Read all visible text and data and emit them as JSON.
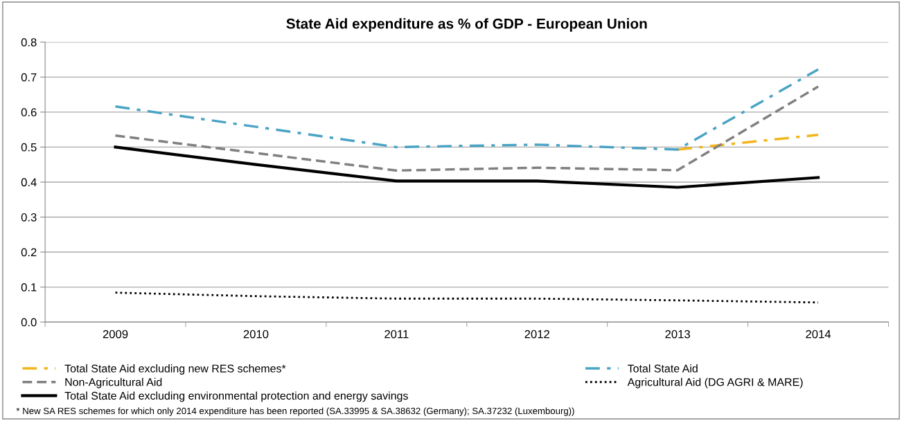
{
  "chart_data": {
    "type": "line",
    "title": "State Aid expenditure as % of GDP - European Union",
    "categories": [
      "2009",
      "2010",
      "2011",
      "2012",
      "2013",
      "2014"
    ],
    "series": [
      {
        "name": "Total State Aid excluding new RES schemes*",
        "color": "#f2b51c",
        "line_style": "dashdot",
        "values": [
          null,
          null,
          null,
          null,
          0.493,
          0.535
        ]
      },
      {
        "name": "Non-Agricultural Aid",
        "color": "#808080",
        "line_style": "dashed",
        "values": [
          0.533,
          0.483,
          0.433,
          0.441,
          0.434,
          0.673
        ]
      },
      {
        "name": "Total State Aid excluding environmental protection and energy savings",
        "color": "#000000",
        "line_style": "solid",
        "values": [
          0.5,
          0.45,
          0.403,
          0.403,
          0.385,
          0.413
        ]
      },
      {
        "name": "Total State Aid",
        "color": "#4aa3c4",
        "line_style": "dashdot",
        "values": [
          0.616,
          0.558,
          0.5,
          0.507,
          0.493,
          0.722
        ]
      },
      {
        "name": "Agricultural Aid (DG AGRI & MARE)",
        "color": "#000000",
        "line_style": "dotted",
        "values": [
          0.084,
          0.074,
          0.067,
          0.067,
          0.062,
          0.056
        ]
      }
    ],
    "ylim": [
      0,
      0.8
    ],
    "yticks": [
      {
        "value": 0,
        "label": "0.0"
      },
      0.1,
      0.2,
      0.3,
      0.4,
      0.5,
      0.6,
      0.7,
      0.8
    ],
    "grid": "y",
    "legend": "bottom",
    "marker": "none",
    "annotations": [
      "* New SA RES schemes for which only 2014 expenditure has been reported (SA.33995 & SA.38632 (Germany); SA.37232 (Luxembourg))"
    ]
  }
}
